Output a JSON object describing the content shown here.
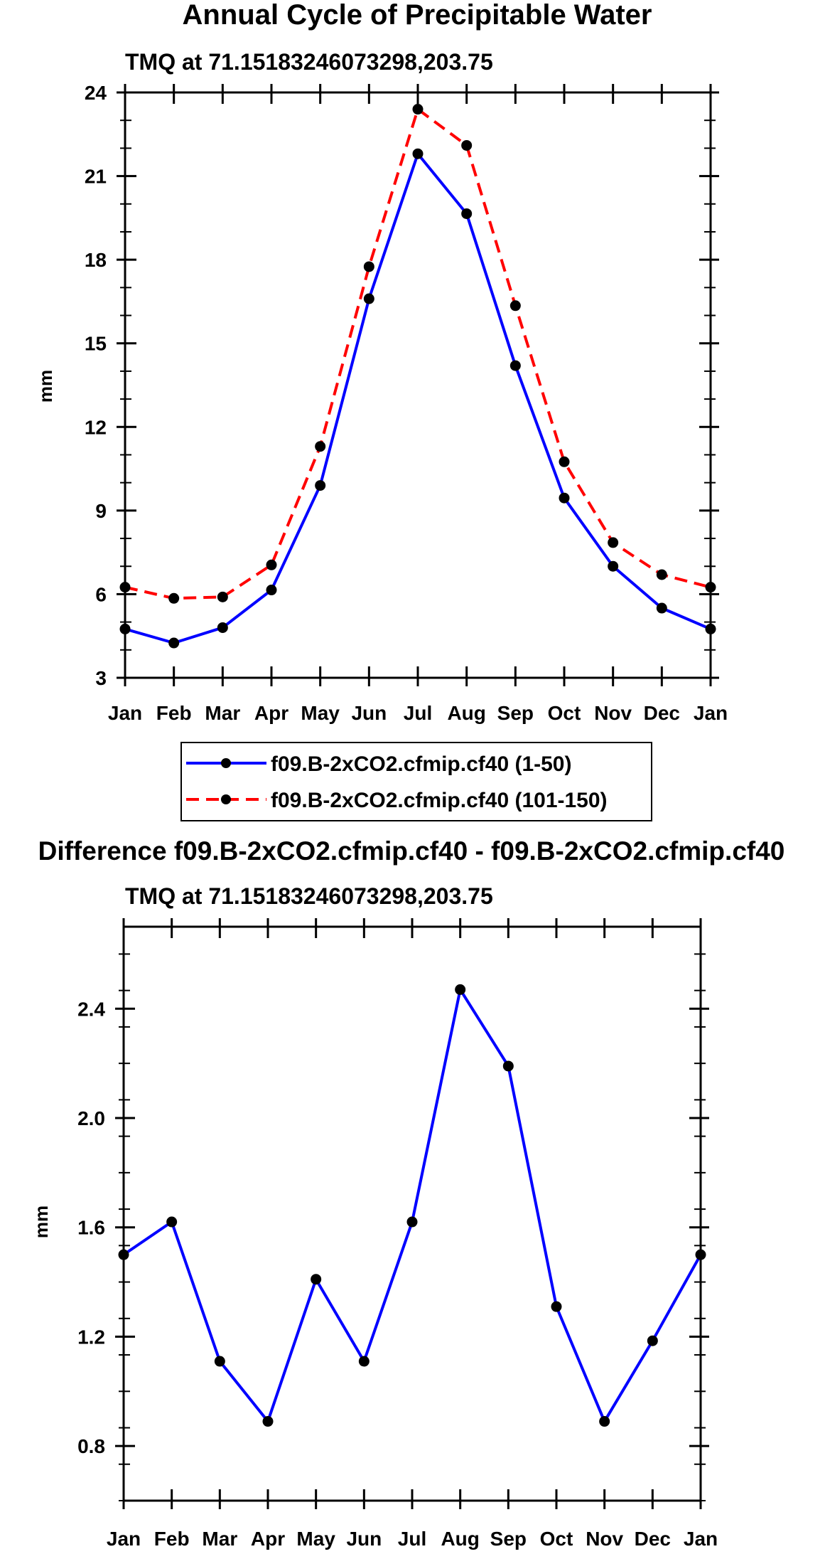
{
  "chart_data": [
    {
      "type": "line",
      "title": "Annual Cycle of Precipitable Water",
      "subtitle": "TMQ at 71.15183246073298,203.75",
      "xlabel": "",
      "ylabel": "mm",
      "categories": [
        "Jan",
        "Feb",
        "Mar",
        "Apr",
        "May",
        "Jun",
        "Jul",
        "Aug",
        "Sep",
        "Oct",
        "Nov",
        "Dec",
        "Jan"
      ],
      "ylim": [
        3,
        24
      ],
      "yticks": [
        "3",
        "6",
        "9",
        "12",
        "15",
        "18",
        "21",
        "24"
      ],
      "series": [
        {
          "name": "f09.B-2xCO2.cfmip.cf40 (1-50)",
          "color": "#0000ff",
          "dash": "solid",
          "values": [
            4.75,
            4.25,
            4.8,
            6.15,
            9.9,
            16.6,
            21.8,
            19.65,
            14.2,
            9.45,
            7.0,
            5.5,
            4.75
          ]
        },
        {
          "name": "f09.B-2xCO2.cfmip.cf40 (101-150)",
          "color": "#ff0000",
          "dash": "dashed",
          "values": [
            6.25,
            5.85,
            5.9,
            7.05,
            11.3,
            17.75,
            23.4,
            22.1,
            16.35,
            10.75,
            7.85,
            6.7,
            6.25
          ]
        }
      ],
      "legend": "below"
    },
    {
      "type": "line",
      "title": "Difference f09.B-2xCO2.cfmip.cf40 - f09.B-2xCO2.cfmip.cf40",
      "subtitle": "TMQ at 71.15183246073298,203.75",
      "xlabel": "",
      "ylabel": "mm",
      "categories": [
        "Jan",
        "Feb",
        "Mar",
        "Apr",
        "May",
        "Jun",
        "Jul",
        "Aug",
        "Sep",
        "Oct",
        "Nov",
        "Dec",
        "Jan"
      ],
      "ylim": [
        0.6,
        2.7
      ],
      "yticks": [
        "0.8",
        "1.2",
        "1.6",
        "2.0",
        "2.4"
      ],
      "series": [
        {
          "name": "Difference",
          "color": "#0000ff",
          "dash": "solid",
          "values": [
            1.5,
            1.62,
            1.11,
            0.89,
            1.41,
            1.11,
            1.62,
            2.47,
            2.19,
            1.31,
            0.89,
            1.185,
            1.5
          ]
        }
      ]
    }
  ]
}
